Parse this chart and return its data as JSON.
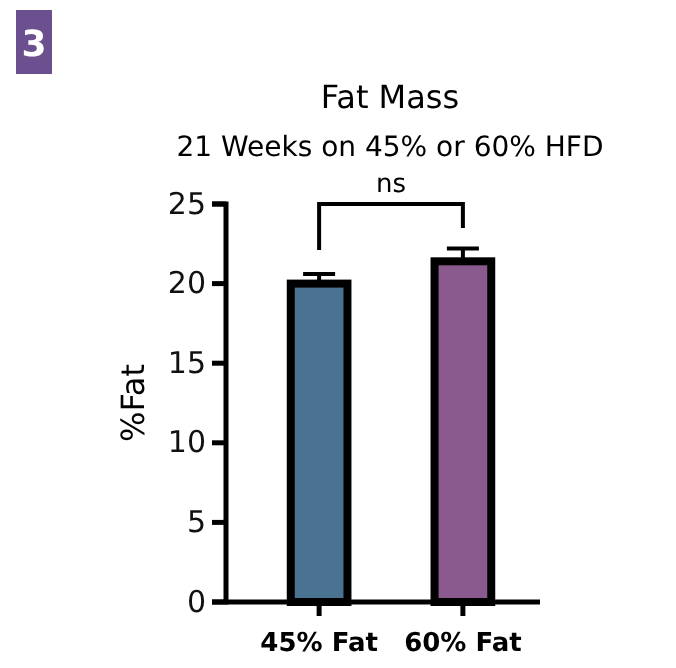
{
  "chart_data": {
    "type": "bar",
    "title": "Fat Mass",
    "subtitle": "21 Weeks on 45% or 60% HFD",
    "ylabel": "%Fat",
    "categories": [
      "45% Fat",
      "60% Fat"
    ],
    "values": [
      20.0,
      21.4
    ],
    "colors": [
      "#4a7391",
      "#8a5a8e"
    ],
    "errors": [
      [
        20.0,
        20.6
      ],
      [
        21.4,
        22.2
      ]
    ],
    "ylim": [
      0,
      25
    ],
    "yticks": [
      0,
      5,
      10,
      15,
      20,
      25
    ],
    "annotations": [
      "3",
      "ns"
    ]
  }
}
